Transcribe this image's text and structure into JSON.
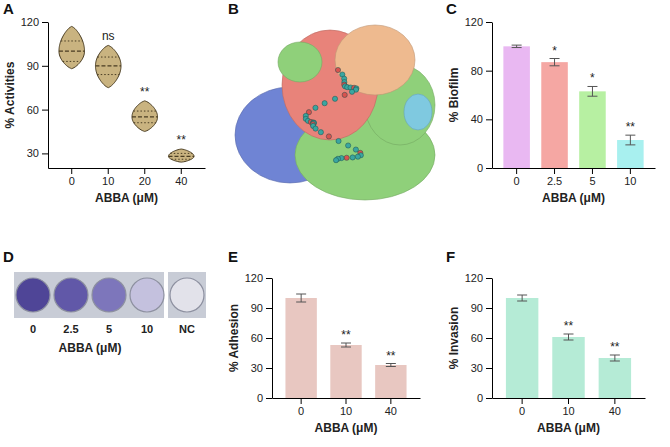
{
  "chart_data": [
    {
      "panel_label": "A",
      "type": "violin",
      "categories": [
        "0",
        "10",
        "20",
        "40"
      ],
      "values": [
        100,
        90,
        55,
        28
      ],
      "ranges": [
        [
          88,
          117
        ],
        [
          75,
          104
        ],
        [
          45,
          66
        ],
        [
          24,
          33
        ]
      ],
      "quartiles": [
        [
          93,
          107
        ],
        [
          84,
          96
        ],
        [
          51,
          59
        ],
        [
          26,
          30
        ]
      ],
      "significance": [
        null,
        "ns",
        "**",
        "**"
      ],
      "x_label": "ABBA (μM)",
      "y_label": "% Activities",
      "ylim": [
        20,
        120
      ],
      "yticks": [
        30,
        60,
        90,
        120
      ],
      "color": "#c9b380"
    },
    {
      "panel_label": "C",
      "type": "bar",
      "categories": [
        "0",
        "2.5",
        "5",
        "10"
      ],
      "values": [
        100,
        87,
        63,
        23
      ],
      "errors": [
        1,
        3,
        4,
        4
      ],
      "colors": [
        "#e9b8f2",
        "#f5a7a3",
        "#b7f0a2",
        "#a8f0ef"
      ],
      "significance": [
        null,
        "*",
        "*",
        "**"
      ],
      "x_label": "ABBA (μM)",
      "y_label": "% Biofilm",
      "ylim": [
        0,
        120
      ],
      "yticks": [
        0,
        40,
        80,
        120
      ]
    },
    {
      "panel_label": "E",
      "type": "bar",
      "categories": [
        "0",
        "10",
        "40"
      ],
      "values": [
        100,
        53,
        33
      ],
      "errors": [
        4,
        2,
        1.5
      ],
      "color": "#e8c7c1",
      "significance": [
        null,
        "**",
        "**"
      ],
      "x_label": "ABBA (μM)",
      "y_label": "% Adhesion",
      "ylim": [
        0,
        120
      ],
      "yticks": [
        0,
        30,
        60,
        90,
        120
      ]
    },
    {
      "panel_label": "F",
      "type": "bar",
      "categories": [
        "0",
        "10",
        "40"
      ],
      "values": [
        100,
        61,
        40
      ],
      "errors": [
        3,
        3,
        3
      ],
      "color": "#b5ebd6",
      "significance": [
        null,
        "**",
        "**"
      ],
      "x_label": "ABBA (μM)",
      "y_label": "% Invasion",
      "ylim": [
        0,
        120
      ],
      "yticks": [
        0,
        30,
        60,
        90,
        120
      ]
    }
  ],
  "image_panels": [
    {
      "panel_label": "B"
    },
    {
      "panel_label": "D",
      "well_labels": [
        "0",
        "2.5",
        "5",
        "10",
        "NC"
      ],
      "x_label": "ABBA (μM)"
    }
  ]
}
